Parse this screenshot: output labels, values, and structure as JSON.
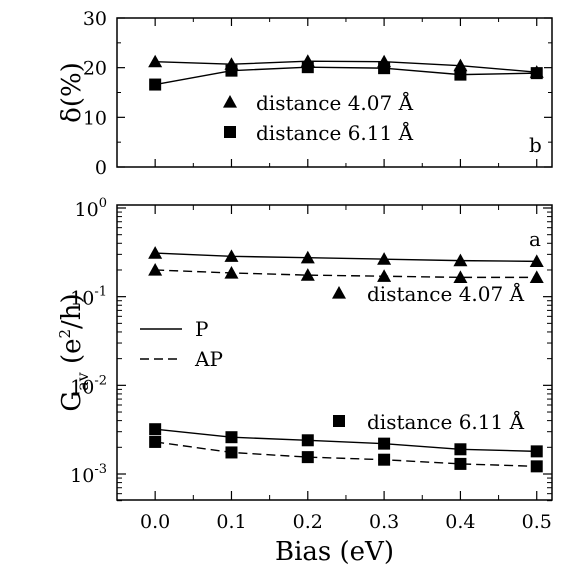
{
  "chart_data": [
    {
      "type": "line",
      "panel_label": "b",
      "ylabel": "δ(%)",
      "xlim": [
        -0.05,
        0.52
      ],
      "ylim": [
        0,
        30
      ],
      "y_ticks": [
        "0",
        "10",
        "20",
        "30"
      ],
      "grid": false,
      "legend": "center",
      "series": [
        {
          "name": "distance 4.07 Å",
          "marker": "triangle",
          "line": "solid",
          "x": [
            0.0,
            0.1,
            0.2,
            0.3,
            0.4,
            0.5
          ],
          "values": [
            21.2,
            20.7,
            21.3,
            21.2,
            20.4,
            19.1
          ]
        },
        {
          "name": "distance 6.11 Å",
          "marker": "square",
          "line": "solid",
          "x": [
            0.0,
            0.1,
            0.2,
            0.3,
            0.4,
            0.5
          ],
          "values": [
            16.6,
            19.4,
            20.1,
            19.9,
            18.6,
            18.9
          ]
        }
      ]
    },
    {
      "type": "line",
      "panel_label": "a",
      "xlabel": "Bias (eV)",
      "ylabel_main": "G",
      "ylabel_sub": "av",
      "ylabel_unit": "(e",
      "ylabel_sup": "2",
      "ylabel_tail": "/h)",
      "x_ticks": [
        "0.0",
        "0.1",
        "0.2",
        "0.3",
        "0.4",
        "0.5"
      ],
      "xlim": [
        -0.05,
        0.52
      ],
      "ylim": [
        0.0005,
        1
      ],
      "log_y": true,
      "y_ticks": [
        {
          "base": "10",
          "exp": "0"
        },
        {
          "base": "10",
          "exp": "-1"
        },
        {
          "base": "10",
          "exp": "-2"
        },
        {
          "base": "10",
          "exp": "-3"
        }
      ],
      "grid": false,
      "line_legend": [
        {
          "label": "P",
          "style": "solid"
        },
        {
          "label": "AP",
          "style": "dashed"
        }
      ],
      "marker_labels": [
        {
          "label": "distance 4.07 Å",
          "marker": "triangle"
        },
        {
          "label": "distance 6.11 Å",
          "marker": "square"
        }
      ],
      "series": [
        {
          "name": "P",
          "marker": "triangle",
          "line": "solid",
          "x": [
            0.0,
            0.1,
            0.2,
            0.3,
            0.4,
            0.5
          ],
          "values": [
            0.31,
            0.285,
            0.275,
            0.265,
            0.255,
            0.25
          ]
        },
        {
          "name": "AP",
          "marker": "triangle",
          "line": "dashed",
          "x": [
            0.0,
            0.1,
            0.2,
            0.3,
            0.4,
            0.5
          ],
          "values": [
            0.2,
            0.185,
            0.175,
            0.17,
            0.165,
            0.165
          ]
        },
        {
          "name": "P",
          "marker": "square",
          "line": "solid",
          "x": [
            0.0,
            0.1,
            0.2,
            0.3,
            0.4,
            0.5
          ],
          "values": [
            0.0032,
            0.0026,
            0.0024,
            0.0022,
            0.0019,
            0.0018
          ]
        },
        {
          "name": "AP",
          "marker": "square",
          "line": "dashed",
          "x": [
            0.0,
            0.1,
            0.2,
            0.3,
            0.4,
            0.5
          ],
          "values": [
            0.0023,
            0.00175,
            0.00155,
            0.00145,
            0.0013,
            0.00122
          ]
        }
      ]
    }
  ]
}
